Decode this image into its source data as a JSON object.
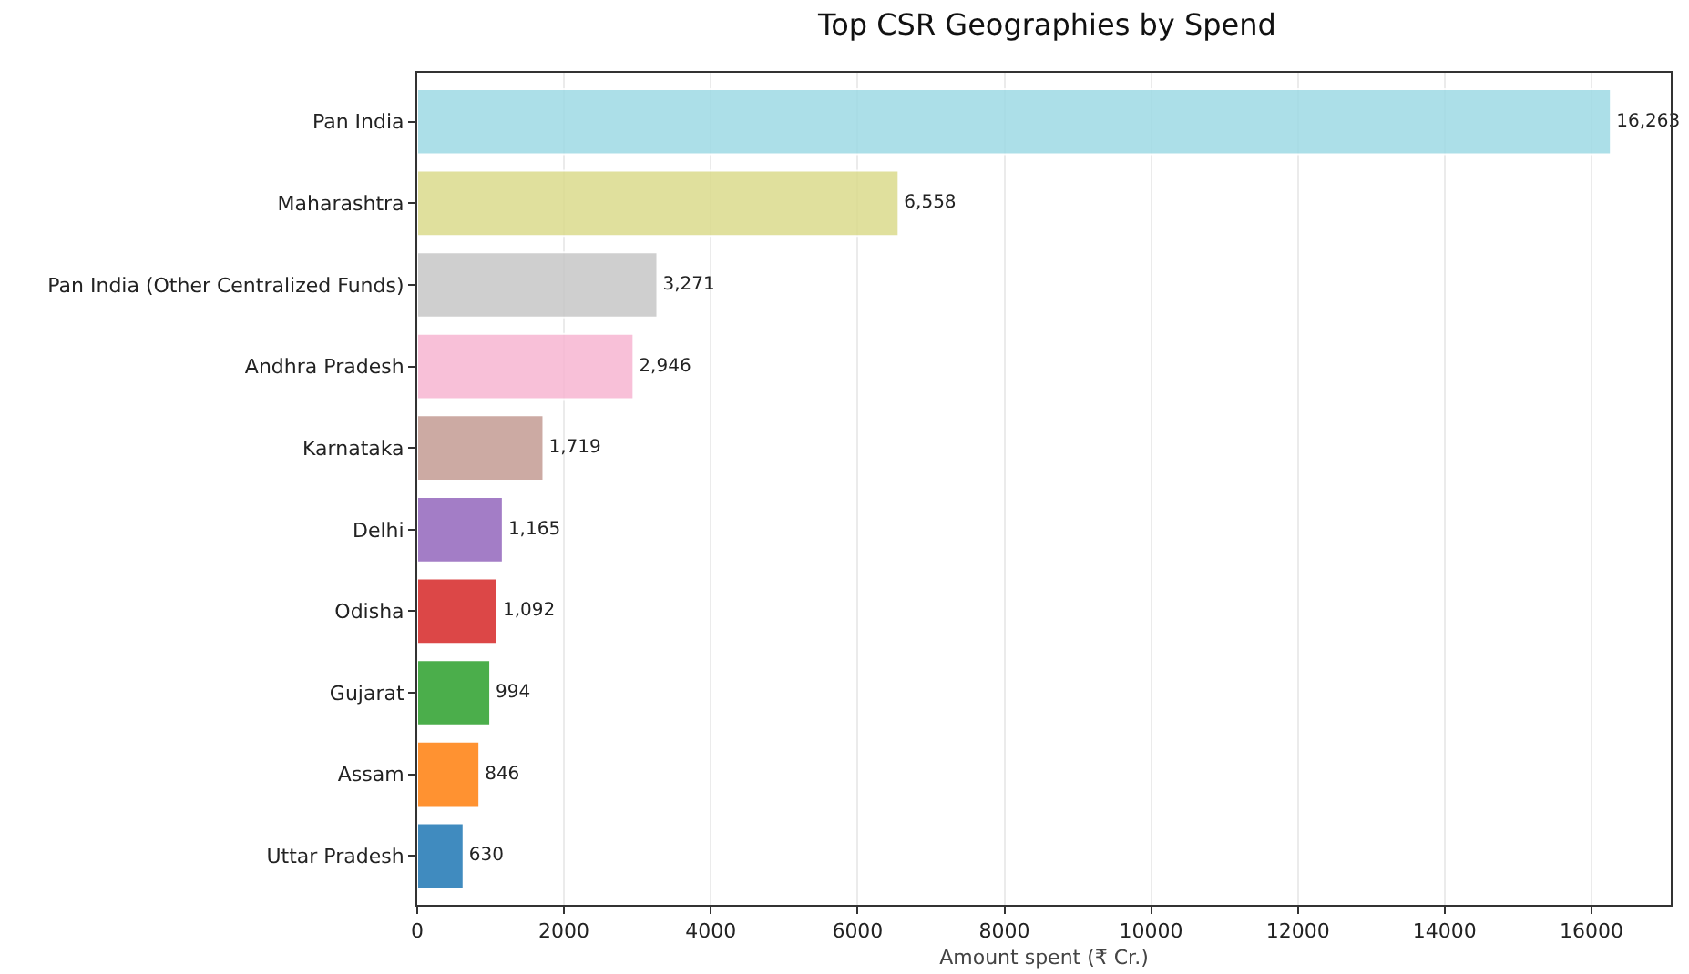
{
  "chart_data": {
    "type": "bar",
    "orientation": "horizontal",
    "title": "Top CSR Geographies by Spend",
    "xlabel": "Amount spent (₹ Cr.)",
    "categories": [
      "Pan India",
      "Maharashtra",
      "Pan India (Other Centralized Funds)",
      "Andhra Pradesh",
      "Karnataka",
      "Delhi",
      "Odisha",
      "Gujarat",
      "Assam",
      "Uttar Pradesh"
    ],
    "values": [
      16263,
      6558,
      3271,
      2946,
      1719,
      1165,
      1092,
      994,
      846,
      630
    ],
    "value_labels": [
      "16,263",
      "6,558",
      "3,271",
      "2,946",
      "1,719",
      "1,165",
      "1,092",
      "994",
      "846",
      "630"
    ],
    "colors": [
      "#9edae5",
      "#dbdb8d",
      "#c7c7c7",
      "#f7b6d2",
      "#c49c94",
      "#9467bd",
      "#d62728",
      "#2ca02c",
      "#ff7f0e",
      "#1f77b4"
    ],
    "xlim": [
      0,
      17080
    ],
    "xticks": [
      0,
      2000,
      4000,
      6000,
      8000,
      10000,
      12000,
      14000,
      16000
    ],
    "grid": "x"
  }
}
